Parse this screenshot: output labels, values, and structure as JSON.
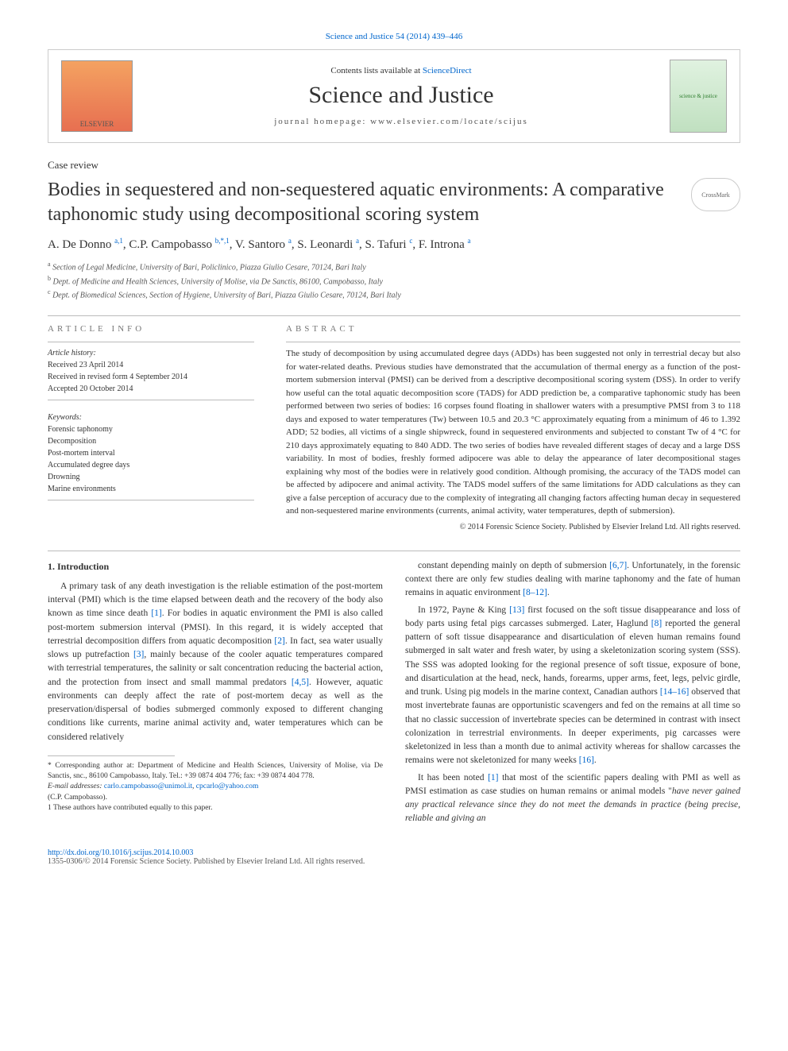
{
  "top_citation": "Science and Justice 54 (2014) 439–446",
  "header": {
    "contents_prefix": "Contents lists available at ",
    "contents_link": "ScienceDirect",
    "journal_name": "Science and Justice",
    "homepage_prefix": "journal homepage: ",
    "homepage_url": "www.elsevier.com/locate/scijus",
    "elsevier_label": "ELSEVIER",
    "cover_label": "science & justice"
  },
  "article_type": "Case review",
  "title": "Bodies in sequestered and non-sequestered aquatic environments: A comparative taphonomic study using decompositional scoring system",
  "crossmark_label": "CrossMark",
  "authors_html": "A. De Donno <sup>a,1</sup>, C.P. Campobasso <sup>b,*,1</sup>, V. Santoro <sup>a</sup>, S. Leonardi <sup>a</sup>, S. Tafuri <sup>c</sup>, F. Introna <sup>a</sup>",
  "affiliations": [
    {
      "sup": "a",
      "text": "Section of Legal Medicine, University of Bari, Policlinico, Piazza Giulio Cesare, 70124, Bari Italy"
    },
    {
      "sup": "b",
      "text": "Dept. of Medicine and Health Sciences, University of Molise, via De Sanctis, 86100, Campobasso, Italy"
    },
    {
      "sup": "c",
      "text": "Dept. of Biomedical Sciences, Section of Hygiene, University of Bari, Piazza Giulio Cesare, 70124, Bari Italy"
    }
  ],
  "info": {
    "section_label": "ARTICLE INFO",
    "history_head": "Article history:",
    "received": "Received 23 April 2014",
    "revised": "Received in revised form 4 September 2014",
    "accepted": "Accepted 20 October 2014",
    "keywords_head": "Keywords:",
    "keywords": [
      "Forensic taphonomy",
      "Decomposition",
      "Post-mortem interval",
      "Accumulated degree days",
      "Drowning",
      "Marine environments"
    ]
  },
  "abstract": {
    "section_label": "ABSTRACT",
    "text": "The study of decomposition by using accumulated degree days (ADDs) has been suggested not only in terrestrial decay but also for water-related deaths. Previous studies have demonstrated that the accumulation of thermal energy as a function of the post-mortem submersion interval (PMSI) can be derived from a descriptive decompositional scoring system (DSS). In order to verify how useful can the total aquatic decomposition score (TADS) for ADD prediction be, a comparative taphonomic study has been performed between two series of bodies: 16 corpses found floating in shallower waters with a presumptive PMSI from 3 to 118 days and exposed to water temperatures (Tw) between 10.5 and 20.3 °C approximately equating from a minimum of 46 to 1.392 ADD; 52 bodies, all victims of a single shipwreck, found in sequestered environments and subjected to constant Tw of 4 °C for 210 days approximately equating to 840 ADD. The two series of bodies have revealed different stages of decay and a large DSS variability. In most of bodies, freshly formed adipocere was able to delay the appearance of later decompositional stages explaining why most of the bodies were in relatively good condition. Although promising, the accuracy of the TADS model can be affected by adipocere and animal activity. The TADS model suffers of the same limitations for ADD calculations as they can give a false perception of accuracy due to the complexity of integrating all changing factors affecting human decay in sequestered and non-sequestered marine environments (currents, animal activity, water temperatures, depth of submersion).",
    "copyright": "© 2014 Forensic Science Society. Published by Elsevier Ireland Ltd. All rights reserved."
  },
  "body": {
    "intro_heading": "1. Introduction",
    "left_paras": [
      "A primary task of any death investigation is the reliable estimation of the post-mortem interval (PMI) which is the time elapsed between death and the recovery of the body also known as time since death [1]. For bodies in aquatic environment the PMI is also called post-mortem submersion interval (PMSI). In this regard, it is widely accepted that terrestrial decomposition differs from aquatic decomposition [2]. In fact, sea water usually slows up putrefaction [3], mainly because of the cooler aquatic temperatures compared with terrestrial temperatures, the salinity or salt concentration reducing the bacterial action, and the protection from insect and small mammal predators [4,5]. However, aquatic environments can deeply affect the rate of post-mortem decay as well as the preservation/dispersal of bodies submerged commonly exposed to different changing conditions like currents, marine animal activity and, water temperatures which can be considered relatively"
    ],
    "right_paras": [
      "constant depending mainly on depth of submersion [6,7]. Unfortunately, in the forensic context there are only few studies dealing with marine taphonomy and the fate of human remains in aquatic environment [8–12].",
      "In 1972, Payne & King [13] first focused on the soft tissue disappearance and loss of body parts using fetal pigs carcasses submerged. Later, Haglund [8] reported the general pattern of soft tissue disappearance and disarticulation of eleven human remains found submerged in salt water and fresh water, by using a skeletonization scoring system (SSS). The SSS was adopted looking for the regional presence of soft tissue, exposure of bone, and disarticulation at the head, neck, hands, forearms, upper arms, feet, legs, pelvic girdle, and trunk. Using pig models in the marine context, Canadian authors [14–16] observed that most invertebrate faunas are opportunistic scavengers and fed on the remains at all time so that no classic succession of invertebrate species can be determined in contrast with insect colonization in terrestrial environments. In deeper experiments, pig carcasses were skeletonized in less than a month due to animal activity whereas for shallow carcasses the remains were not skeletonized for many weeks [16].",
      "It has been noted [1] that most of the scientific papers dealing with PMI as well as PMSI estimation as case studies on human remains or animal models \"have never gained any practical relevance since they do not meet the demands in practice (being precise, reliable and giving an"
    ]
  },
  "footnotes": {
    "corr": "* Corresponding author at: Department of Medicine and Health Sciences, University of Molise, via De Sanctis, snc., 86100 Campobasso, Italy. Tel.: +39 0874 404 776; fax: +39 0874 404 778.",
    "email_label": "E-mail addresses:",
    "email1": "carlo.campobasso@unimol.it",
    "email2": "cpcarlo@yahoo.com",
    "email_owner": "(C.P. Campobasso).",
    "equal": "1 These authors have contributed equally to this paper."
  },
  "footer": {
    "doi": "http://dx.doi.org/10.1016/j.scijus.2014.10.003",
    "issn_line": "1355-0306/© 2014 Forensic Science Society. Published by Elsevier Ireland Ltd. All rights reserved."
  },
  "colors": {
    "link": "#0066cc",
    "text": "#333333",
    "muted": "#777777",
    "rule": "#bbbbbb"
  }
}
